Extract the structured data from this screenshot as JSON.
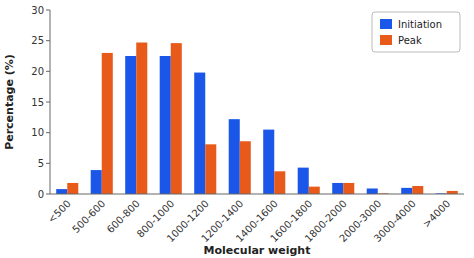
{
  "chart_data": {
    "type": "bar",
    "categories": [
      "<500",
      "500-600",
      "600-800",
      "800-1000",
      "1000-1200",
      "1200-1400",
      "1400-1600",
      "1600-1800",
      "1800-2000",
      "2000-3000",
      "3000-4000",
      ">4000"
    ],
    "series": [
      {
        "name": "Initiation",
        "color": "#1a56e8",
        "values": [
          0.8,
          3.9,
          22.5,
          22.5,
          19.8,
          12.2,
          10.5,
          4.3,
          1.8,
          0.9,
          1.0,
          0.1
        ]
      },
      {
        "name": "Peak",
        "color": "#e85a1a",
        "values": [
          1.8,
          23.0,
          24.7,
          24.6,
          8.1,
          8.6,
          3.7,
          1.2,
          1.8,
          0.1,
          1.3,
          0.5
        ]
      }
    ],
    "xlabel": "Molecular weight",
    "ylabel": "Percentage (%)",
    "ylim": [
      0,
      30
    ],
    "yticks": [
      0,
      5,
      10,
      15,
      20,
      25,
      30
    ],
    "legend": "upper right",
    "grid": false
  }
}
